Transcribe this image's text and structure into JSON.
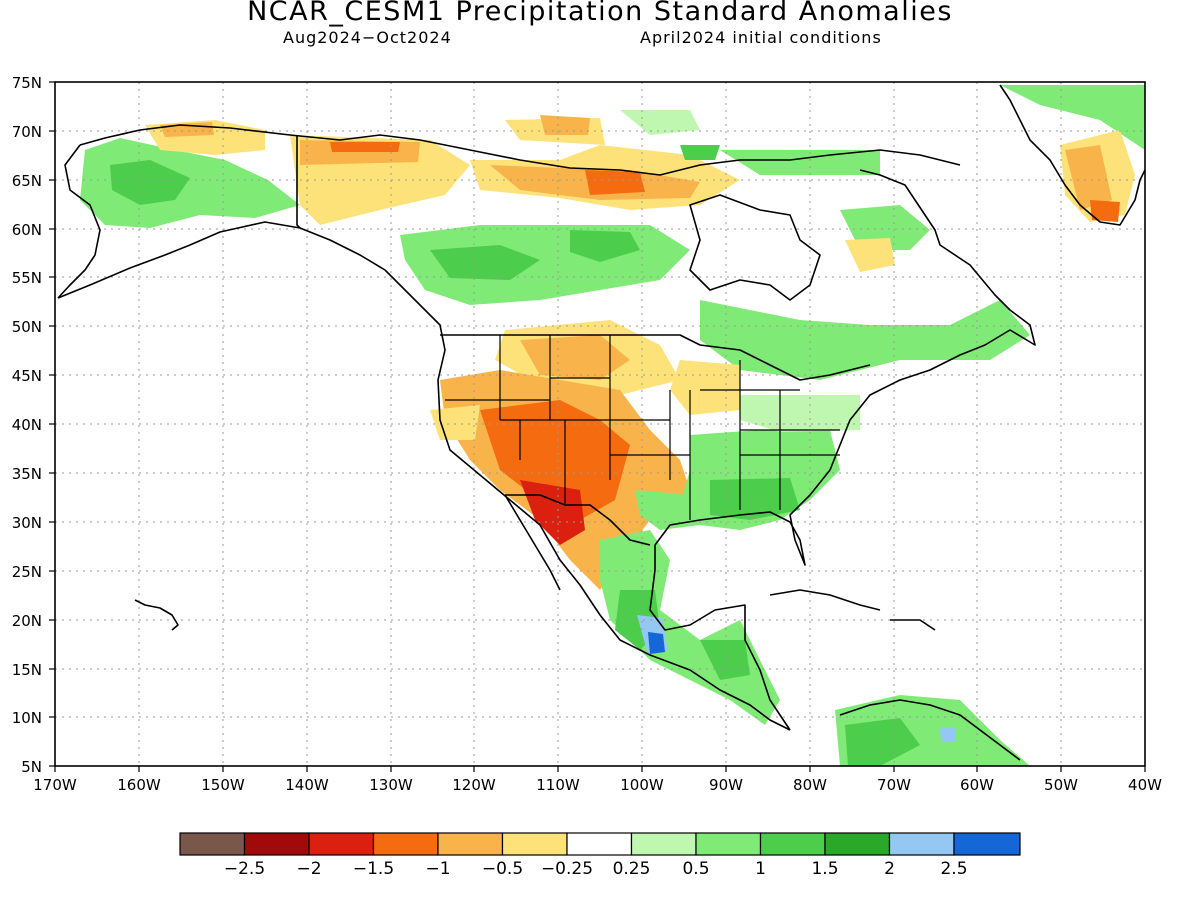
{
  "header": {
    "title": "NCAR_CESM1 Precipitation Standard Anomalies",
    "period": "Aug2024−Oct2024",
    "init": "April2024 initial conditions"
  },
  "axes": {
    "lat_labels": [
      "75N",
      "70N",
      "65N",
      "60N",
      "55N",
      "50N",
      "45N",
      "40N",
      "35N",
      "30N",
      "25N",
      "20N",
      "15N",
      "10N",
      "5N"
    ],
    "lon_labels": [
      "170W",
      "160W",
      "150W",
      "140W",
      "130W",
      "120W",
      "110W",
      "100W",
      "90W",
      "80W",
      "70W",
      "60W",
      "50W",
      "40W"
    ]
  },
  "legend": {
    "colors": [
      "#7a574b",
      "#a00a0a",
      "#dc2010",
      "#f56c10",
      "#f8b44a",
      "#fde27a",
      "#ffffff",
      "#bff7b0",
      "#80ea76",
      "#4ccd4c",
      "#2aa82a",
      "#94c8f2",
      "#1566d6"
    ],
    "labels": [
      "−2.5",
      "−2",
      "−1.5",
      "−1",
      "−0.5",
      "−0.25",
      "0.25",
      "0.5",
      "1",
      "1.5",
      "2",
      "2.5"
    ]
  },
  "colors": {
    "coast": "#000000",
    "grid": "#9a9a9a"
  }
}
